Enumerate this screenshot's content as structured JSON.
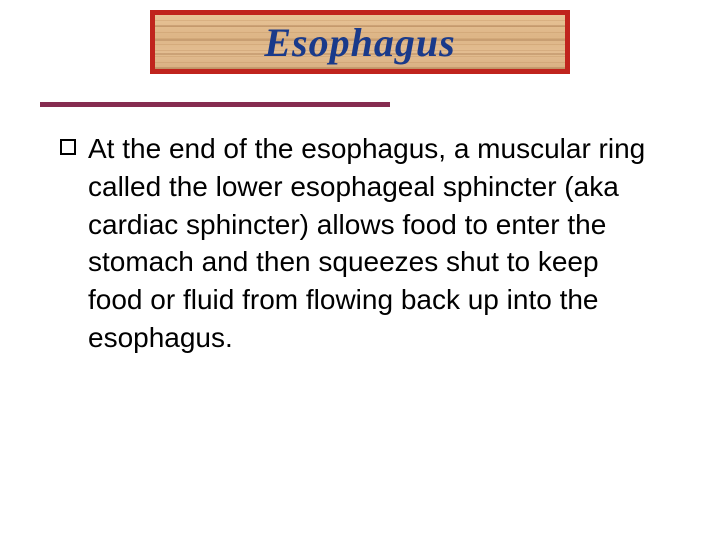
{
  "title": {
    "text": "Esophagus",
    "text_color": "#1a3a8a",
    "border_color": "#c0241d",
    "wood_bg_base": "#e3bd91"
  },
  "rule": {
    "color": "#862c50"
  },
  "content": {
    "bullet_text": "At the end of the esophagus, a muscular ring called the lower esophageal sphincter (aka cardiac sphincter) allows food to enter the stomach and then squeezes shut to keep food or fluid from flowing back up into the esophagus."
  }
}
